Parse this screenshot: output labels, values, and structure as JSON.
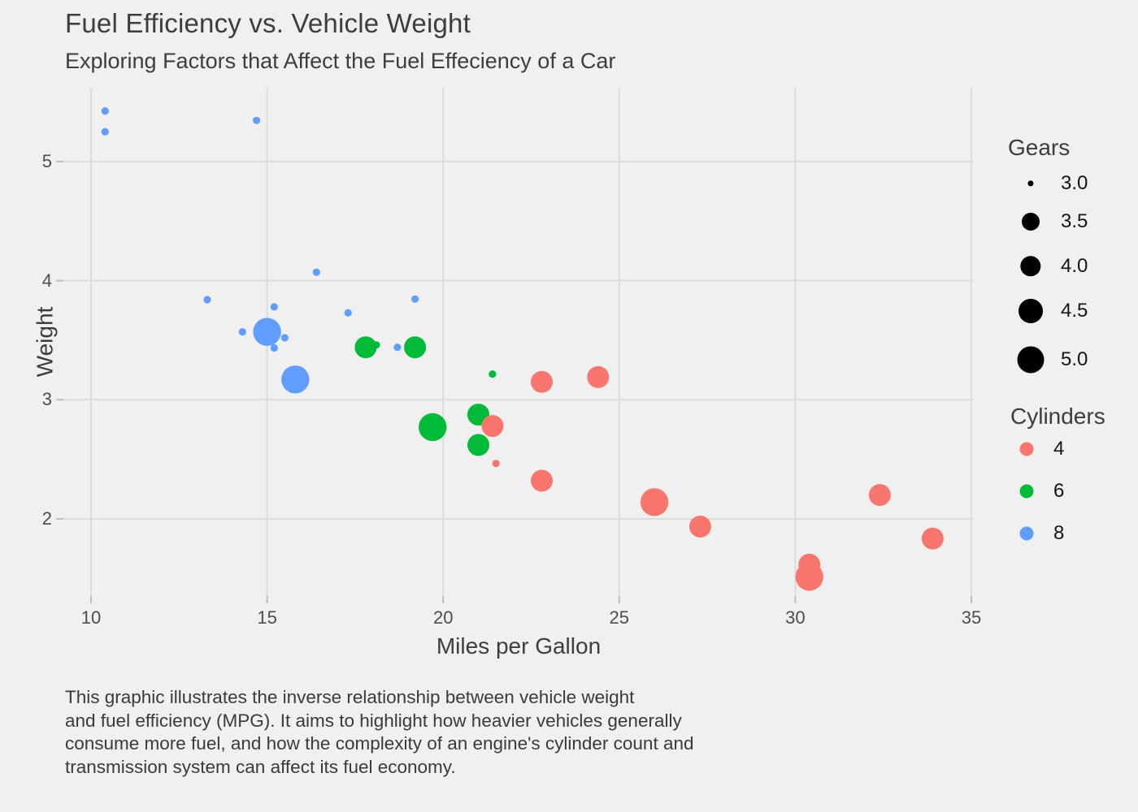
{
  "header": {
    "title": "Fuel Efficiency vs. Vehicle Weight",
    "subtitle": "Exploring Factors that Affect the Fuel Effeciency of a Car"
  },
  "caption": "This graphic illustrates the inverse relationship between vehicle weight\nand fuel efficiency (MPG). It aims to highlight how heavier vehicles generally\nconsume more fuel, and how the complexity of an engine's cylinder count and\ntransmission system can affect its fuel economy.",
  "axes": {
    "x_label": "Miles per Gallon",
    "y_label": "Weight",
    "x_ticks": [
      "10",
      "15",
      "20",
      "25",
      "30",
      "35"
    ],
    "y_ticks": [
      "2",
      "3",
      "4",
      "5"
    ]
  },
  "colors": {
    "background": "#f0f0f0",
    "gridline": "#dcdcdc",
    "tick_mark": "#bdbdbd",
    "cyl_4": "#F8766D",
    "cyl_6": "#00BA38",
    "cyl_8": "#619CFF",
    "legend_swatch_black": "#000000"
  },
  "legends": {
    "gears": {
      "title": "Gears",
      "items": [
        {
          "label": "3.0",
          "r": 3.6
        },
        {
          "label": "3.5",
          "r": 11
        },
        {
          "label": "4.0",
          "r": 12.7
        },
        {
          "label": "4.5",
          "r": 15
        },
        {
          "label": "5.0",
          "r": 16.5
        }
      ]
    },
    "cylinders": {
      "title": "Cylinders",
      "items": [
        {
          "label": "4",
          "color": "#F8766D"
        },
        {
          "label": "6",
          "color": "#00BA38"
        },
        {
          "label": "8",
          "color": "#619CFF"
        }
      ]
    }
  },
  "chart_data": {
    "type": "scatter",
    "title": "Fuel Efficiency vs. Vehicle Weight",
    "subtitle": "Exploring Factors that Affect the Fuel Effeciency of a Car",
    "xlabel": "Miles per Gallon",
    "ylabel": "Weight",
    "x_range": [
      9.215,
      35.069
    ],
    "y_range": [
      1.352,
      5.62
    ],
    "x_gridlines": [
      10,
      15,
      20,
      25,
      30,
      35
    ],
    "y_gridlines": [
      2,
      3,
      4,
      5
    ],
    "grid": true,
    "legend_position": "right",
    "color_by": "cyl",
    "size_by": "gear",
    "palette": {
      "4": "#F8766D",
      "6": "#00BA38",
      "8": "#619CFF"
    },
    "gear_radius": {
      "3": 4.6,
      "4": 13.5,
      "5": 17.2
    },
    "points": [
      {
        "mpg": 21.0,
        "wt": 2.62,
        "cyl": 6,
        "gear": 4
      },
      {
        "mpg": 21.0,
        "wt": 2.875,
        "cyl": 6,
        "gear": 4
      },
      {
        "mpg": 22.8,
        "wt": 2.32,
        "cyl": 4,
        "gear": 4
      },
      {
        "mpg": 21.4,
        "wt": 3.215,
        "cyl": 6,
        "gear": 3
      },
      {
        "mpg": 18.7,
        "wt": 3.44,
        "cyl": 8,
        "gear": 3
      },
      {
        "mpg": 18.1,
        "wt": 3.46,
        "cyl": 6,
        "gear": 3
      },
      {
        "mpg": 14.3,
        "wt": 3.57,
        "cyl": 8,
        "gear": 3
      },
      {
        "mpg": 24.4,
        "wt": 3.19,
        "cyl": 4,
        "gear": 4
      },
      {
        "mpg": 22.8,
        "wt": 3.15,
        "cyl": 4,
        "gear": 4
      },
      {
        "mpg": 19.2,
        "wt": 3.44,
        "cyl": 6,
        "gear": 4
      },
      {
        "mpg": 17.8,
        "wt": 3.44,
        "cyl": 6,
        "gear": 4
      },
      {
        "mpg": 16.4,
        "wt": 4.07,
        "cyl": 8,
        "gear": 3
      },
      {
        "mpg": 17.3,
        "wt": 3.73,
        "cyl": 8,
        "gear": 3
      },
      {
        "mpg": 15.2,
        "wt": 3.78,
        "cyl": 8,
        "gear": 3
      },
      {
        "mpg": 10.4,
        "wt": 5.25,
        "cyl": 8,
        "gear": 3
      },
      {
        "mpg": 10.4,
        "wt": 5.424,
        "cyl": 8,
        "gear": 3
      },
      {
        "mpg": 14.7,
        "wt": 5.345,
        "cyl": 8,
        "gear": 3
      },
      {
        "mpg": 32.4,
        "wt": 2.2,
        "cyl": 4,
        "gear": 4
      },
      {
        "mpg": 30.4,
        "wt": 1.615,
        "cyl": 4,
        "gear": 4
      },
      {
        "mpg": 33.9,
        "wt": 1.835,
        "cyl": 4,
        "gear": 4
      },
      {
        "mpg": 21.5,
        "wt": 2.465,
        "cyl": 4,
        "gear": 3
      },
      {
        "mpg": 15.5,
        "wt": 3.52,
        "cyl": 8,
        "gear": 3
      },
      {
        "mpg": 15.2,
        "wt": 3.435,
        "cyl": 8,
        "gear": 3
      },
      {
        "mpg": 13.3,
        "wt": 3.84,
        "cyl": 8,
        "gear": 3
      },
      {
        "mpg": 19.2,
        "wt": 3.845,
        "cyl": 8,
        "gear": 3
      },
      {
        "mpg": 27.3,
        "wt": 1.935,
        "cyl": 4,
        "gear": 4
      },
      {
        "mpg": 26.0,
        "wt": 2.14,
        "cyl": 4,
        "gear": 5
      },
      {
        "mpg": 30.4,
        "wt": 1.513,
        "cyl": 4,
        "gear": 5
      },
      {
        "mpg": 15.8,
        "wt": 3.17,
        "cyl": 8,
        "gear": 5
      },
      {
        "mpg": 19.7,
        "wt": 2.77,
        "cyl": 6,
        "gear": 5
      },
      {
        "mpg": 15.0,
        "wt": 3.57,
        "cyl": 8,
        "gear": 5
      },
      {
        "mpg": 21.4,
        "wt": 2.78,
        "cyl": 4,
        "gear": 4
      }
    ]
  }
}
